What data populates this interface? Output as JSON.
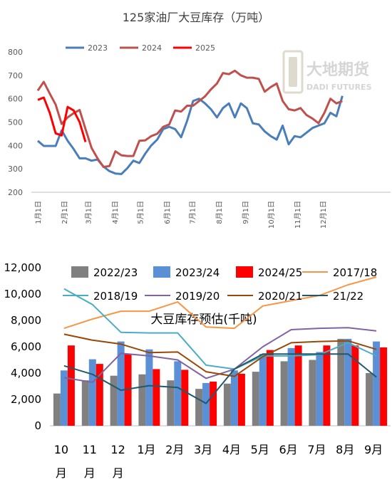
{
  "chart_data": [
    {
      "type": "line",
      "title": "125家油厂大豆库存（万吨）",
      "ylim": [
        200,
        800
      ],
      "yticks": [
        "200",
        "300",
        "400",
        "500",
        "600",
        "700",
        "800"
      ],
      "xticks": [
        "1月1日",
        "2月1日",
        "3月1日",
        "4月1日",
        "5月1日",
        "6月1日",
        "7月1日",
        "8月1日",
        "9月1日",
        "10月1日",
        "11月1日",
        "12月1日"
      ],
      "legend_position": "top",
      "logo": {
        "name": "大地期货",
        "en": "DADI FUTURES"
      },
      "series": [
        {
          "name": "2023",
          "color": "#4a7ebb",
          "x": [
            1,
            2,
            3,
            4,
            5,
            6,
            7,
            8,
            9,
            10,
            11,
            12,
            13,
            14,
            15,
            16,
            17,
            18,
            19,
            20,
            21,
            22,
            23,
            24,
            25,
            26,
            27,
            28,
            29,
            30,
            31,
            32,
            33,
            34,
            35,
            36,
            37,
            38,
            39,
            40,
            41,
            42,
            43,
            44,
            45,
            46,
            47,
            48,
            49,
            50,
            51,
            52
          ],
          "values": [
            420,
            398,
            398,
            398,
            465,
            420,
            385,
            345,
            345,
            335,
            340,
            310,
            290,
            280,
            278,
            303,
            335,
            325,
            365,
            400,
            425,
            470,
            480,
            470,
            435,
            505,
            590,
            600,
            580,
            555,
            520,
            560,
            580,
            520,
            580,
            560,
            495,
            490,
            460,
            440,
            425,
            485,
            405,
            440,
            435,
            455,
            475,
            485,
            495,
            540,
            525,
            612
          ]
        },
        {
          "name": "2024",
          "color": "#c0504d",
          "x": [
            1,
            2,
            3,
            4,
            5,
            6,
            7,
            8,
            9,
            10,
            11,
            12,
            13,
            14,
            15,
            16,
            17,
            18,
            19,
            20,
            21,
            22,
            23,
            24,
            25,
            26,
            27,
            28,
            29,
            30,
            31,
            32,
            33,
            34,
            35,
            36,
            37,
            38,
            39,
            40,
            41,
            42,
            43,
            44,
            45,
            46,
            47,
            48,
            49,
            50,
            51,
            52
          ],
          "values": [
            635,
            672,
            622,
            575,
            492,
            520,
            538,
            552,
            470,
            390,
            345,
            308,
            312,
            375,
            358,
            355,
            355,
            420,
            422,
            440,
            450,
            480,
            490,
            550,
            545,
            570,
            570,
            590,
            610,
            640,
            665,
            710,
            705,
            720,
            700,
            690,
            690,
            685,
            630,
            650,
            665,
            590,
            555,
            550,
            560,
            530,
            515,
            495,
            540,
            600,
            580,
            590
          ]
        },
        {
          "name": "2025",
          "color": "#ff0000",
          "x": [
            1,
            2,
            3,
            4,
            5,
            6,
            7,
            8,
            9
          ],
          "values": [
            595,
            605,
            540,
            452,
            443,
            565,
            550,
            500,
            415
          ]
        }
      ]
    },
    {
      "type": "bar",
      "title": "大豆库存预估(千吨)",
      "categories": [
        "10月",
        "11月",
        "12月",
        "1月",
        "2月",
        "3月",
        "4月",
        "5月",
        "6月",
        "7月",
        "8月",
        "9月"
      ],
      "ylim": [
        0,
        12000
      ],
      "yticks": [
        "0",
        "2,000",
        "4,000",
        "6,000",
        "8,000",
        "10,000",
        "12,000"
      ],
      "legend_position": "top",
      "bar_series": [
        {
          "name": "2022/23",
          "color": "#808080",
          "values": [
            2450,
            3450,
            3800,
            3900,
            3450,
            2800,
            3200,
            4100,
            4900,
            5000,
            6600,
            4000
          ]
        },
        {
          "name": "2023/24",
          "color": "#5b8fd6",
          "values": [
            4200,
            5050,
            6400,
            5800,
            4900,
            3250,
            4200,
            5450,
            5900,
            5600,
            6600,
            6400
          ]
        },
        {
          "name": "2024/25",
          "color": "#ff0000",
          "values": [
            6100,
            4700,
            5450,
            4300,
            4250,
            3350,
            3950,
            5750,
            6100,
            6100,
            6100,
            5950
          ]
        }
      ],
      "line_series": [
        {
          "name": "2017/18",
          "color": "#f79646",
          "values": [
            7400,
            8100,
            8700,
            8700,
            9400,
            7500,
            7400,
            9100,
            9500,
            9900,
            10700,
            11300
          ]
        },
        {
          "name": "2018/19",
          "color": "#4bacc6",
          "values": [
            10400,
            9200,
            7100,
            7050,
            7050,
            4600,
            4300,
            5300,
            5300,
            5400,
            6300,
            5300
          ]
        },
        {
          "name": "2019/20",
          "color": "#8064a2",
          "values": [
            3650,
            3300,
            5500,
            5300,
            5000,
            3600,
            4300,
            6000,
            7300,
            7400,
            7450,
            7200
          ]
        },
        {
          "name": "2020/21",
          "color": "#984807",
          "values": [
            6950,
            6500,
            6200,
            5550,
            5600,
            4100,
            3750,
            5250,
            6300,
            6400,
            6450,
            5800
          ]
        },
        {
          "name": "21/22",
          "color": "#215968",
          "values": [
            4550,
            3900,
            2700,
            3050,
            2900,
            1700,
            4300,
            5450,
            5450,
            5450,
            5450,
            3700
          ]
        }
      ]
    }
  ]
}
